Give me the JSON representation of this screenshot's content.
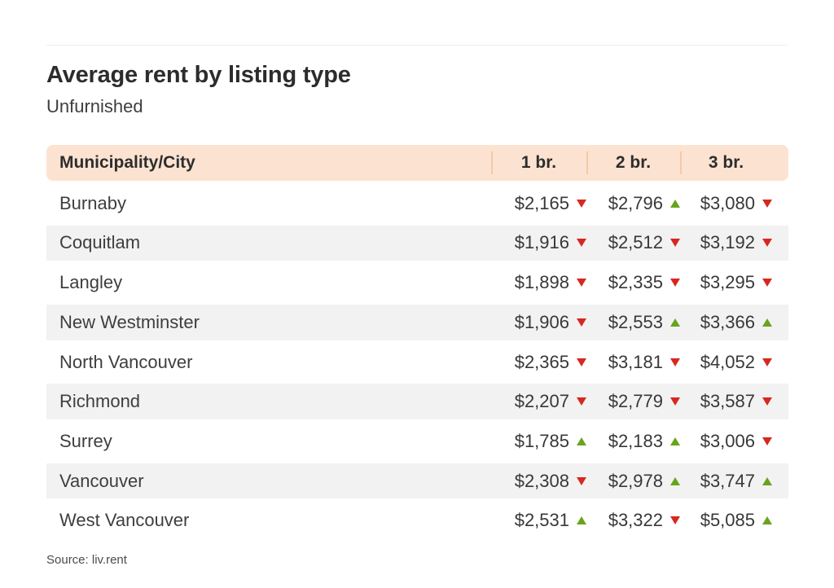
{
  "page": {
    "title": "Average rent by listing type",
    "subtitle": "Unfurnished",
    "source": "Source: liv.rent"
  },
  "table": {
    "columns": [
      "Municipality/City",
      "1 br.",
      "2 br.",
      "3 br."
    ],
    "rows": [
      {
        "city": "Burnaby",
        "cells": [
          {
            "value": "$2,165",
            "trend": "down"
          },
          {
            "value": "$2,796",
            "trend": "up"
          },
          {
            "value": "$3,080",
            "trend": "down"
          }
        ]
      },
      {
        "city": "Coquitlam",
        "cells": [
          {
            "value": "$1,916",
            "trend": "down"
          },
          {
            "value": "$2,512",
            "trend": "down"
          },
          {
            "value": "$3,192",
            "trend": "down"
          }
        ]
      },
      {
        "city": "Langley",
        "cells": [
          {
            "value": "$1,898",
            "trend": "down"
          },
          {
            "value": "$2,335",
            "trend": "down"
          },
          {
            "value": "$3,295",
            "trend": "down"
          }
        ]
      },
      {
        "city": "New Westminster",
        "cells": [
          {
            "value": "$1,906",
            "trend": "down"
          },
          {
            "value": "$2,553",
            "trend": "up"
          },
          {
            "value": "$3,366",
            "trend": "up"
          }
        ]
      },
      {
        "city": "North Vancouver",
        "cells": [
          {
            "value": "$2,365",
            "trend": "down"
          },
          {
            "value": "$3,181",
            "trend": "down"
          },
          {
            "value": "$4,052",
            "trend": "down"
          }
        ]
      },
      {
        "city": "Richmond",
        "cells": [
          {
            "value": "$2,207",
            "trend": "down"
          },
          {
            "value": "$2,779",
            "trend": "down"
          },
          {
            "value": "$3,587",
            "trend": "down"
          }
        ]
      },
      {
        "city": "Surrey",
        "cells": [
          {
            "value": "$1,785",
            "trend": "up"
          },
          {
            "value": "$2,183",
            "trend": "up"
          },
          {
            "value": "$3,006",
            "trend": "down"
          }
        ]
      },
      {
        "city": "Vancouver",
        "cells": [
          {
            "value": "$2,308",
            "trend": "down"
          },
          {
            "value": "$2,978",
            "trend": "up"
          },
          {
            "value": "$3,747",
            "trend": "up"
          }
        ]
      },
      {
        "city": "West Vancouver",
        "cells": [
          {
            "value": "$2,531",
            "trend": "up"
          },
          {
            "value": "$3,322",
            "trend": "down"
          },
          {
            "value": "$5,085",
            "trend": "up"
          }
        ]
      }
    ]
  },
  "colors": {
    "header_bg": "#fce3d1",
    "row_stripe": "#f2f2f2",
    "trend_up": "#68a41c",
    "trend_down": "#d7281f"
  },
  "chart_data": {
    "type": "table",
    "title": "Average rent by listing type",
    "subtitle": "Unfurnished",
    "columns": [
      "Municipality/City",
      "1 br.",
      "2 br.",
      "3 br."
    ],
    "rows": [
      {
        "city": "Burnaby",
        "values": [
          2165,
          2796,
          3080
        ],
        "trends": [
          "down",
          "up",
          "down"
        ]
      },
      {
        "city": "Coquitlam",
        "values": [
          1916,
          2512,
          3192
        ],
        "trends": [
          "down",
          "down",
          "down"
        ]
      },
      {
        "city": "Langley",
        "values": [
          1898,
          2335,
          3295
        ],
        "trends": [
          "down",
          "down",
          "down"
        ]
      },
      {
        "city": "New Westminster",
        "values": [
          1906,
          2553,
          3366
        ],
        "trends": [
          "down",
          "up",
          "up"
        ]
      },
      {
        "city": "North Vancouver",
        "values": [
          2365,
          3181,
          4052
        ],
        "trends": [
          "down",
          "down",
          "down"
        ]
      },
      {
        "city": "Richmond",
        "values": [
          2207,
          2779,
          3587
        ],
        "trends": [
          "down",
          "down",
          "down"
        ]
      },
      {
        "city": "Surrey",
        "values": [
          1785,
          2183,
          3006
        ],
        "trends": [
          "up",
          "up",
          "down"
        ]
      },
      {
        "city": "Vancouver",
        "values": [
          2308,
          2978,
          3747
        ],
        "trends": [
          "down",
          "up",
          "up"
        ]
      },
      {
        "city": "West Vancouver",
        "values": [
          2531,
          3322,
          5085
        ],
        "trends": [
          "up",
          "down",
          "up"
        ]
      }
    ],
    "legend": "red triangle = decrease, green triangle = increase",
    "source": "Source: liv.rent"
  }
}
